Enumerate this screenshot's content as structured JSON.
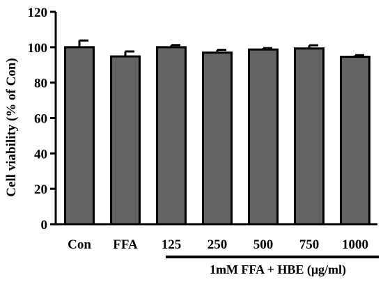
{
  "chart_data": {
    "type": "bar",
    "categories": [
      "Con",
      "FFA",
      "125",
      "250",
      "500",
      "750",
      "1000"
    ],
    "values": [
      100,
      94.8,
      100,
      97,
      98.7,
      99.3,
      94.6
    ],
    "errors": [
      3.8,
      2.8,
      1.2,
      1.5,
      0.8,
      1.8,
      0.9
    ],
    "ylabel": "Cell viability (% of Con)",
    "group_label": "1mM FFA + HBE (μg/ml)",
    "group_start_index": 2,
    "ylim": [
      0,
      120
    ],
    "yticks": [
      0,
      20,
      40,
      60,
      80,
      100,
      120
    ],
    "bar_color": "#636363",
    "edge_color": "#000000",
    "grid": false,
    "legend": "none"
  }
}
